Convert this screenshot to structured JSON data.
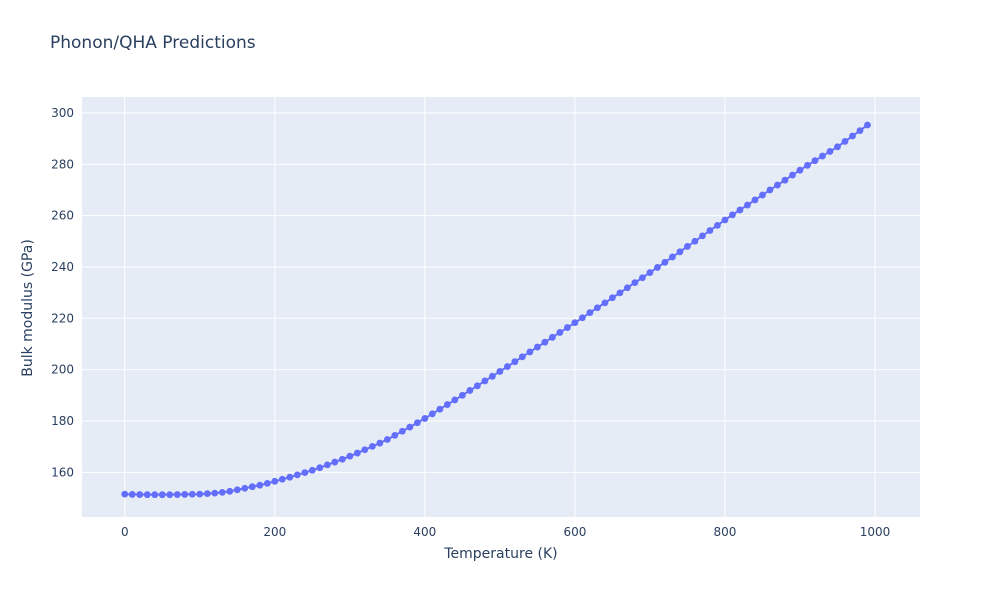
{
  "chart_data": {
    "type": "scatter",
    "mode": "lines+markers",
    "title": "Phonon/QHA Predictions",
    "xlabel": "Temperature (K)",
    "ylabel": "Bulk modulus (GPa)",
    "legend": "none",
    "grid": true,
    "xlim": [
      -57,
      1060
    ],
    "ylim": [
      142.6,
      306.2
    ],
    "xticks": [
      0,
      200,
      400,
      600,
      800,
      1000
    ],
    "yticks": [
      160,
      180,
      200,
      220,
      240,
      260,
      280,
      300
    ],
    "line_color": "#636efa",
    "marker_color": "#636efa",
    "plot_bg": "#e5ecf6",
    "grid_color": "#ffffff",
    "text_color": "#2a3f5f",
    "x": [
      0,
      10,
      20,
      30,
      40,
      50,
      60,
      70,
      80,
      90,
      100,
      110,
      120,
      130,
      140,
      150,
      160,
      170,
      180,
      190,
      200,
      210,
      220,
      230,
      240,
      250,
      260,
      270,
      280,
      290,
      300,
      310,
      320,
      330,
      340,
      350,
      360,
      370,
      380,
      390,
      400,
      410,
      420,
      430,
      440,
      450,
      460,
      470,
      480,
      490,
      500,
      510,
      520,
      530,
      540,
      550,
      560,
      570,
      580,
      590,
      600,
      610,
      620,
      630,
      640,
      650,
      660,
      670,
      680,
      690,
      700,
      710,
      720,
      730,
      740,
      750,
      760,
      770,
      780,
      790,
      800,
      810,
      820,
      830,
      840,
      850,
      860,
      870,
      880,
      890,
      900,
      910,
      920,
      930,
      940,
      950,
      960,
      970,
      980,
      990
    ],
    "y": [
      151.5,
      151.4,
      151.35,
      151.3,
      151.3,
      151.3,
      151.3,
      151.35,
      151.4,
      151.45,
      151.5,
      151.7,
      151.9,
      152.2,
      152.6,
      153.2,
      153.8,
      154.4,
      155.0,
      155.7,
      156.5,
      157.3,
      158.1,
      159.0,
      159.9,
      160.8,
      161.8,
      162.9,
      164.0,
      165.1,
      166.3,
      167.5,
      168.8,
      170.1,
      171.4,
      172.8,
      174.4,
      176.0,
      177.6,
      179.3,
      181.0,
      182.8,
      184.6,
      186.4,
      188.2,
      190.0,
      191.9,
      193.7,
      195.6,
      197.4,
      199.3,
      201.2,
      203.1,
      205.0,
      206.9,
      208.8,
      210.7,
      212.6,
      214.5,
      216.4,
      218.3,
      220.2,
      222.2,
      224.1,
      226.0,
      228.0,
      229.9,
      231.9,
      233.9,
      235.8,
      237.8,
      239.8,
      241.8,
      243.9,
      245.9,
      248.0,
      250.0,
      252.1,
      254.2,
      256.2,
      258.3,
      260.3,
      262.2,
      264.1,
      266.1,
      268.0,
      270.0,
      271.9,
      273.8,
      275.8,
      277.7,
      279.6,
      281.4,
      283.2,
      285.0,
      286.8,
      288.9,
      291.0,
      293.1,
      295.3
    ]
  }
}
